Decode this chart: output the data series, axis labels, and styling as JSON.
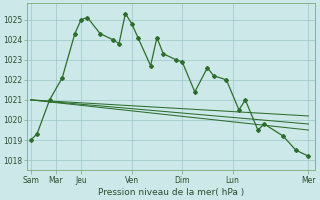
{
  "bg_color": "#cce8e8",
  "grid_color": "#9cc8c8",
  "line_color": "#2d6e2d",
  "xlabel": "Pression niveau de la mer( hPa )",
  "ylim": [
    1017.5,
    1025.8
  ],
  "yticks": [
    1018,
    1019,
    1020,
    1021,
    1022,
    1023,
    1024,
    1025
  ],
  "day_tick_positions": [
    0,
    2,
    4,
    8,
    12,
    16,
    22
  ],
  "day_tick_labels": [
    "Sam",
    "Mar",
    "Jeu",
    "Ven",
    "Dim",
    "Lun",
    "Mer"
  ],
  "series1_x": [
    0,
    0.5,
    1.5,
    2.5,
    3.5,
    4.0,
    4.5,
    5.5,
    6.5,
    7.0,
    7.5,
    8.0,
    8.5,
    9.5,
    10.0,
    10.5,
    11.5,
    12.0,
    13.0,
    14.0,
    14.5,
    15.5,
    16.5,
    17.0,
    18.0,
    18.5,
    20.0,
    21.0,
    22.0
  ],
  "series1_y": [
    1019.0,
    1019.3,
    1021.0,
    1022.1,
    1024.3,
    1025.0,
    1025.1,
    1024.3,
    1024.0,
    1023.8,
    1025.3,
    1024.8,
    1024.1,
    1022.7,
    1024.1,
    1023.3,
    1023.0,
    1022.9,
    1021.4,
    1022.6,
    1022.2,
    1022.0,
    1020.5,
    1021.0,
    1019.5,
    1019.8,
    1019.2,
    1018.5,
    1018.2
  ],
  "series2_x": [
    0,
    22
  ],
  "series2_y": [
    1021.0,
    1019.5
  ],
  "series3_x": [
    0,
    22
  ],
  "series3_y": [
    1021.0,
    1019.8
  ],
  "series4_x": [
    0,
    22
  ],
  "series4_y": [
    1021.0,
    1020.2
  ],
  "xlim": [
    -0.3,
    22.5
  ]
}
